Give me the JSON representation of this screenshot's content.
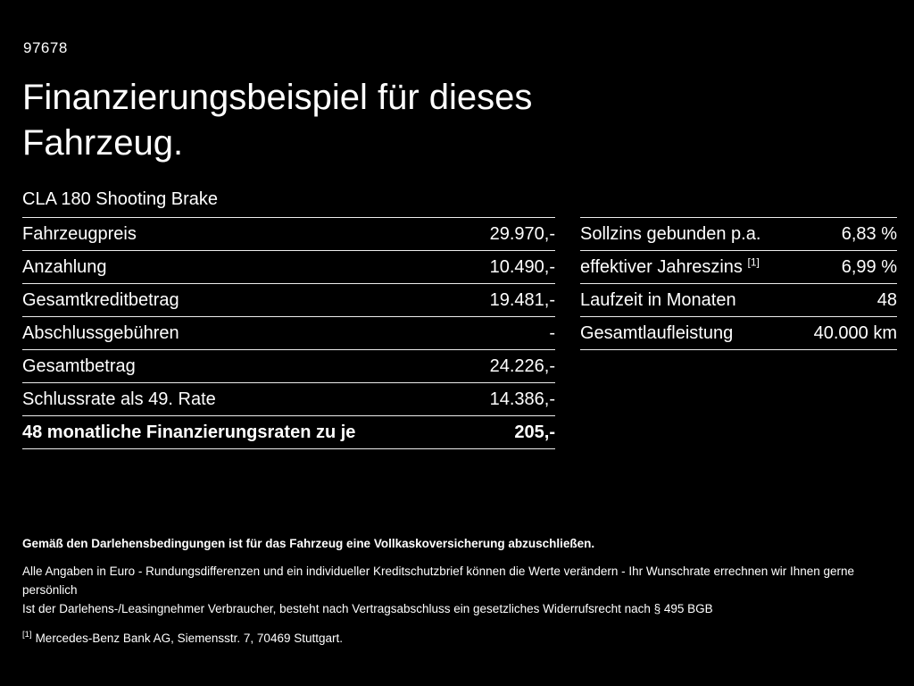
{
  "page": {
    "doc_id": "97678",
    "title": "Finanzierungsbeispiel für dieses Fahrzeug.",
    "model": "CLA 180 Shooting Brake"
  },
  "left_table": {
    "rows": [
      {
        "label": "Fahrzeugpreis",
        "value": "29.970,-"
      },
      {
        "label": "Anzahlung",
        "value": "10.490,-"
      },
      {
        "label": "Gesamtkreditbetrag",
        "value": "19.481,-"
      },
      {
        "label": "Abschlussgebühren",
        "value": "-"
      },
      {
        "label": "Gesamtbetrag",
        "value": "24.226,-"
      },
      {
        "label": "Schlussrate als 49. Rate",
        "value": "14.386,-"
      },
      {
        "label": "48 monatliche Finanzierungsraten zu je",
        "value": "205,-"
      }
    ]
  },
  "right_table": {
    "rows": [
      {
        "label": "Sollzins gebunden p.a.",
        "value": "6,83 %"
      },
      {
        "label": "effektiver Jahreszins",
        "sup": "[1]",
        "value": "6,99 %"
      },
      {
        "label": "Laufzeit in Monaten",
        "value": "48"
      },
      {
        "label": "Gesamtlaufleistung",
        "value": "40.000 km"
      }
    ]
  },
  "footer": {
    "lead": "Gemäß den Darlehensbedingungen ist für das Fahrzeug eine Vollkaskoversicherung abzuschließen.",
    "note1": "Alle Angaben in Euro - Rundungsdifferenzen und ein individueller Kreditschutzbrief können die Werte verändern - Ihr Wunschrate errechnen wir Ihnen gerne persönlich",
    "note2": "Ist der Darlehens-/Leasingnehmer Verbraucher, besteht nach Vertragsabschluss ein gesetzliches Widerrufsrecht nach § 495 BGB",
    "footnote_marker": "[1]",
    "footnote_text": "Mercedes-Benz Bank AG, Siemensstr. 7, 70469 Stuttgart."
  }
}
